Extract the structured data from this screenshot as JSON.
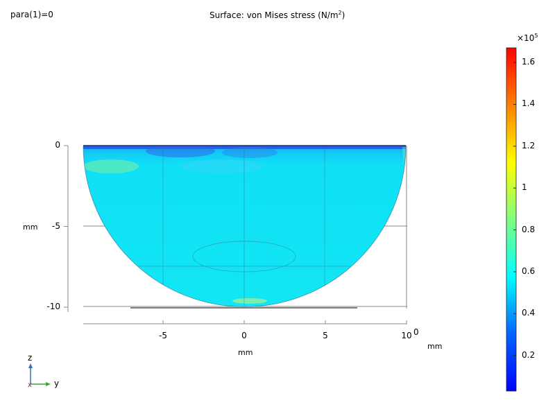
{
  "header": {
    "param_label": "para(1)=0",
    "title_main": "Surface: von Mises stress (N/m",
    "title_exp": "2",
    "title_end": ")"
  },
  "chart_data": {
    "type": "heatmap",
    "title": "Surface: von Mises stress (N/m2)",
    "x_axis": {
      "label": "mm",
      "ticks": [
        -5,
        0,
        5,
        10
      ],
      "range": [
        -10,
        10
      ]
    },
    "z_axis": {
      "label": "mm",
      "ticks": [
        0,
        -5,
        -10
      ],
      "range": [
        -10,
        0
      ]
    },
    "y_axis_label": "mm",
    "y_axis_tick": "0",
    "colorbar": {
      "multiplier_base": "×10",
      "multiplier_exp": "5",
      "ticks": [
        1.6,
        1.4,
        1.2,
        1,
        0.8,
        0.6,
        0.4,
        0.2
      ],
      "range": [
        0.03,
        1.67
      ],
      "colormap": [
        "#0000ff",
        "#0064ff",
        "#00ffff",
        "#80ff80",
        "#ffff00",
        "#ff8000",
        "#ff0000"
      ]
    }
  },
  "triad": {
    "z_label": "z",
    "y_label": "y"
  }
}
